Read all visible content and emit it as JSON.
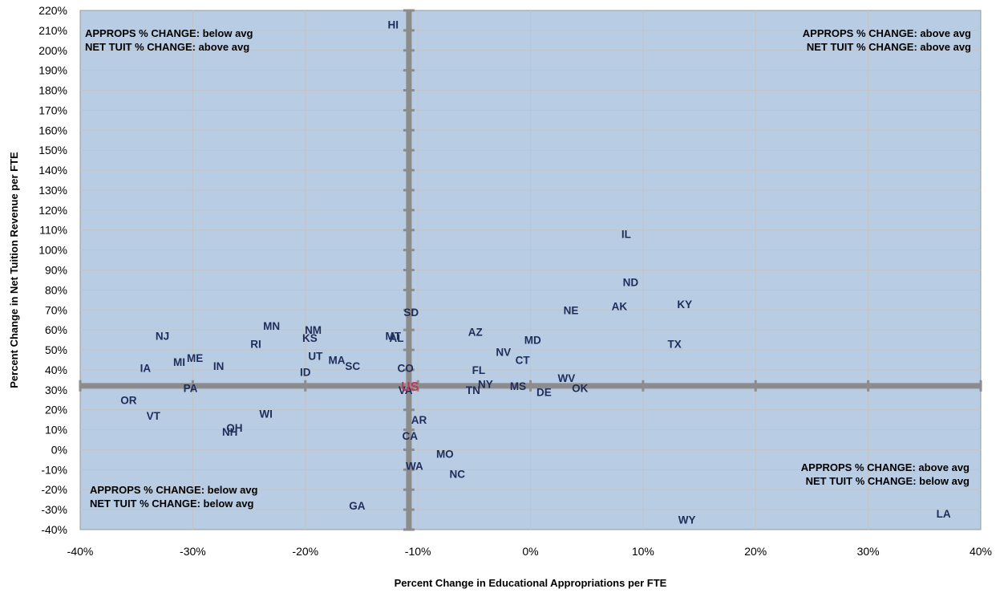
{
  "chart_data": {
    "type": "scatter",
    "xlabel": "Percent Change in Educational Appropriations per FTE",
    "ylabel": "Percent Change in Net Tuition Revenue per FTE",
    "xlim": [
      -40,
      40
    ],
    "ylim": [
      -40,
      220
    ],
    "x_ticks": [
      "-40%",
      "-30%",
      "-20%",
      "-10%",
      "0%",
      "10%",
      "20%",
      "30%",
      "40%"
    ],
    "y_ticks": [
      "-40%",
      "-30%",
      "-20%",
      "-10%",
      "0%",
      "10%",
      "20%",
      "30%",
      "40%",
      "50%",
      "60%",
      "70%",
      "80%",
      "90%",
      "100%",
      "110%",
      "120%",
      "130%",
      "140%",
      "150%",
      "160%",
      "170%",
      "180%",
      "190%",
      "200%",
      "210%",
      "220%"
    ],
    "grid": true,
    "reference_lines": {
      "x": -10.8,
      "y": 32
    },
    "colors": {
      "plot_bg": "#b8cce4",
      "grid": "#c4c4c4",
      "ref_line": "#8c8c8c",
      "label": "#1f2d5a",
      "us_label": "#c0395a"
    },
    "quadrant_labels": [
      {
        "position": "top-left",
        "lines": [
          "APPROPS % CHANGE: below avg",
          "NET TUIT % CHANGE: above avg"
        ]
      },
      {
        "position": "top-right",
        "lines": [
          "APPROPS % CHANGE: above avg",
          "NET TUIT % CHANGE: above avg"
        ]
      },
      {
        "position": "bottom-left",
        "lines": [
          "APPROPS % CHANGE: below avg",
          "NET TUIT % CHANGE: below avg"
        ]
      },
      {
        "position": "bottom-right",
        "lines": [
          "APPROPS % CHANGE: above avg",
          "NET TUIT % CHANGE: below avg"
        ]
      }
    ],
    "points": [
      {
        "label": "HI",
        "x": -12.2,
        "y": 213
      },
      {
        "label": "IL",
        "x": 8.5,
        "y": 108
      },
      {
        "label": "ND",
        "x": 8.9,
        "y": 84
      },
      {
        "label": "KY",
        "x": 13.7,
        "y": 73
      },
      {
        "label": "AK",
        "x": 7.9,
        "y": 72
      },
      {
        "label": "NE",
        "x": 3.6,
        "y": 70
      },
      {
        "label": "SD",
        "x": -10.6,
        "y": 69
      },
      {
        "label": "TX",
        "x": 12.8,
        "y": 53
      },
      {
        "label": "AZ",
        "x": -4.9,
        "y": 59
      },
      {
        "label": "MD",
        "x": 0.2,
        "y": 55
      },
      {
        "label": "NV",
        "x": -2.4,
        "y": 49
      },
      {
        "label": "CT",
        "x": -0.7,
        "y": 45
      },
      {
        "label": "FL",
        "x": -4.6,
        "y": 40
      },
      {
        "label": "NY",
        "x": -4.0,
        "y": 33
      },
      {
        "label": "MS",
        "x": -1.1,
        "y": 32
      },
      {
        "label": "TN",
        "x": -5.1,
        "y": 30
      },
      {
        "label": "DE",
        "x": 1.2,
        "y": 29
      },
      {
        "label": "WV",
        "x": 3.2,
        "y": 36
      },
      {
        "label": "OK",
        "x": 4.4,
        "y": 31
      },
      {
        "label": "MT",
        "x": -12.2,
        "y": 57
      },
      {
        "label": "AL",
        "x": -11.9,
        "y": 56
      },
      {
        "label": "CO",
        "x": -11.1,
        "y": 41
      },
      {
        "label": "VA",
        "x": -11.1,
        "y": 30
      },
      {
        "label": "US",
        "x": -10.7,
        "y": 31.5
      },
      {
        "label": "AR",
        "x": -9.9,
        "y": 15
      },
      {
        "label": "CA",
        "x": -10.7,
        "y": 7
      },
      {
        "label": "MO",
        "x": -7.6,
        "y": -2
      },
      {
        "label": "WA",
        "x": -10.3,
        "y": -8
      },
      {
        "label": "NC",
        "x": -6.5,
        "y": -12
      },
      {
        "label": "GA",
        "x": -15.4,
        "y": -28
      },
      {
        "label": "WY",
        "x": 13.9,
        "y": -35
      },
      {
        "label": "LA",
        "x": 36.7,
        "y": -32
      },
      {
        "label": "MN",
        "x": -23.0,
        "y": 62
      },
      {
        "label": "NM",
        "x": -19.3,
        "y": 60
      },
      {
        "label": "KS",
        "x": -19.6,
        "y": 56
      },
      {
        "label": "RI",
        "x": -24.4,
        "y": 53
      },
      {
        "label": "UT",
        "x": -19.1,
        "y": 47
      },
      {
        "label": "MA",
        "x": -17.2,
        "y": 45
      },
      {
        "label": "SC",
        "x": -15.8,
        "y": 42
      },
      {
        "label": "ID",
        "x": -20.0,
        "y": 39
      },
      {
        "label": "NJ",
        "x": -32.7,
        "y": 57
      },
      {
        "label": "ME",
        "x": -29.8,
        "y": 46
      },
      {
        "label": "MI",
        "x": -31.2,
        "y": 44
      },
      {
        "label": "IN",
        "x": -27.7,
        "y": 42
      },
      {
        "label": "IA",
        "x": -34.2,
        "y": 41
      },
      {
        "label": "PA",
        "x": -30.2,
        "y": 31
      },
      {
        "label": "OR",
        "x": -35.7,
        "y": 25
      },
      {
        "label": "VT",
        "x": -33.5,
        "y": 17
      },
      {
        "label": "WI",
        "x": -23.5,
        "y": 18
      },
      {
        "label": "OH",
        "x": -26.3,
        "y": 11
      },
      {
        "label": "NH",
        "x": -26.7,
        "y": 9
      }
    ]
  }
}
